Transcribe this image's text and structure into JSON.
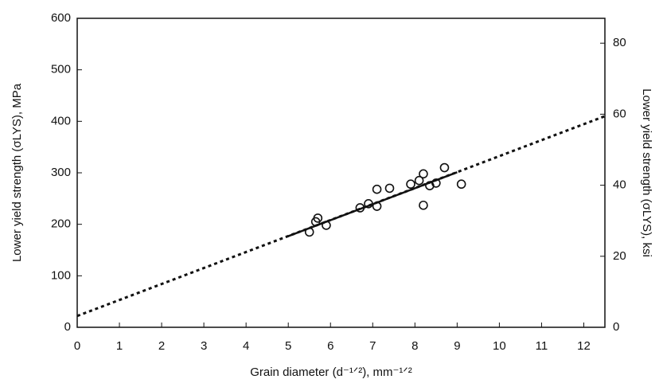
{
  "chart_data": {
    "type": "scatter",
    "x_label": "Grain diameter (d⁻¹ᐟ²), mm⁻¹ᐟ²",
    "y_label": "Lower yield strength (σLYS), MPa",
    "y2_label": "Lower yield strength (σLYS), ksi",
    "xlim": [
      0,
      12.5
    ],
    "xticks": [
      0,
      1,
      2,
      3,
      4,
      5,
      6,
      7,
      8,
      9,
      10,
      11,
      12
    ],
    "ylim": [
      0,
      600
    ],
    "yticks": [
      0,
      100,
      200,
      300,
      400,
      500,
      600
    ],
    "y2lim": [
      0,
      87.0
    ],
    "y2ticks": [
      0,
      20,
      40,
      60,
      80
    ],
    "series": [
      {
        "kind": "points",
        "color": "#111111",
        "x": [
          5.5,
          5.7,
          5.65,
          5.9,
          6.7,
          6.9,
          7.1,
          7.1,
          7.4,
          7.9,
          8.1,
          8.2,
          8.2,
          8.35,
          8.5,
          8.7,
          9.1
        ],
        "values": [
          185,
          212,
          205,
          198,
          232,
          240,
          268,
          235,
          270,
          278,
          285,
          298,
          237,
          275,
          280,
          310,
          278
        ]
      },
      {
        "kind": "line",
        "dashed": true,
        "color": "#111111",
        "x": [
          0,
          12.5
        ],
        "values": [
          22,
          410
        ]
      },
      {
        "kind": "line",
        "dashed": false,
        "color": "#111111",
        "x": [
          5,
          9
        ],
        "values": [
          177,
          301
        ]
      }
    ]
  }
}
